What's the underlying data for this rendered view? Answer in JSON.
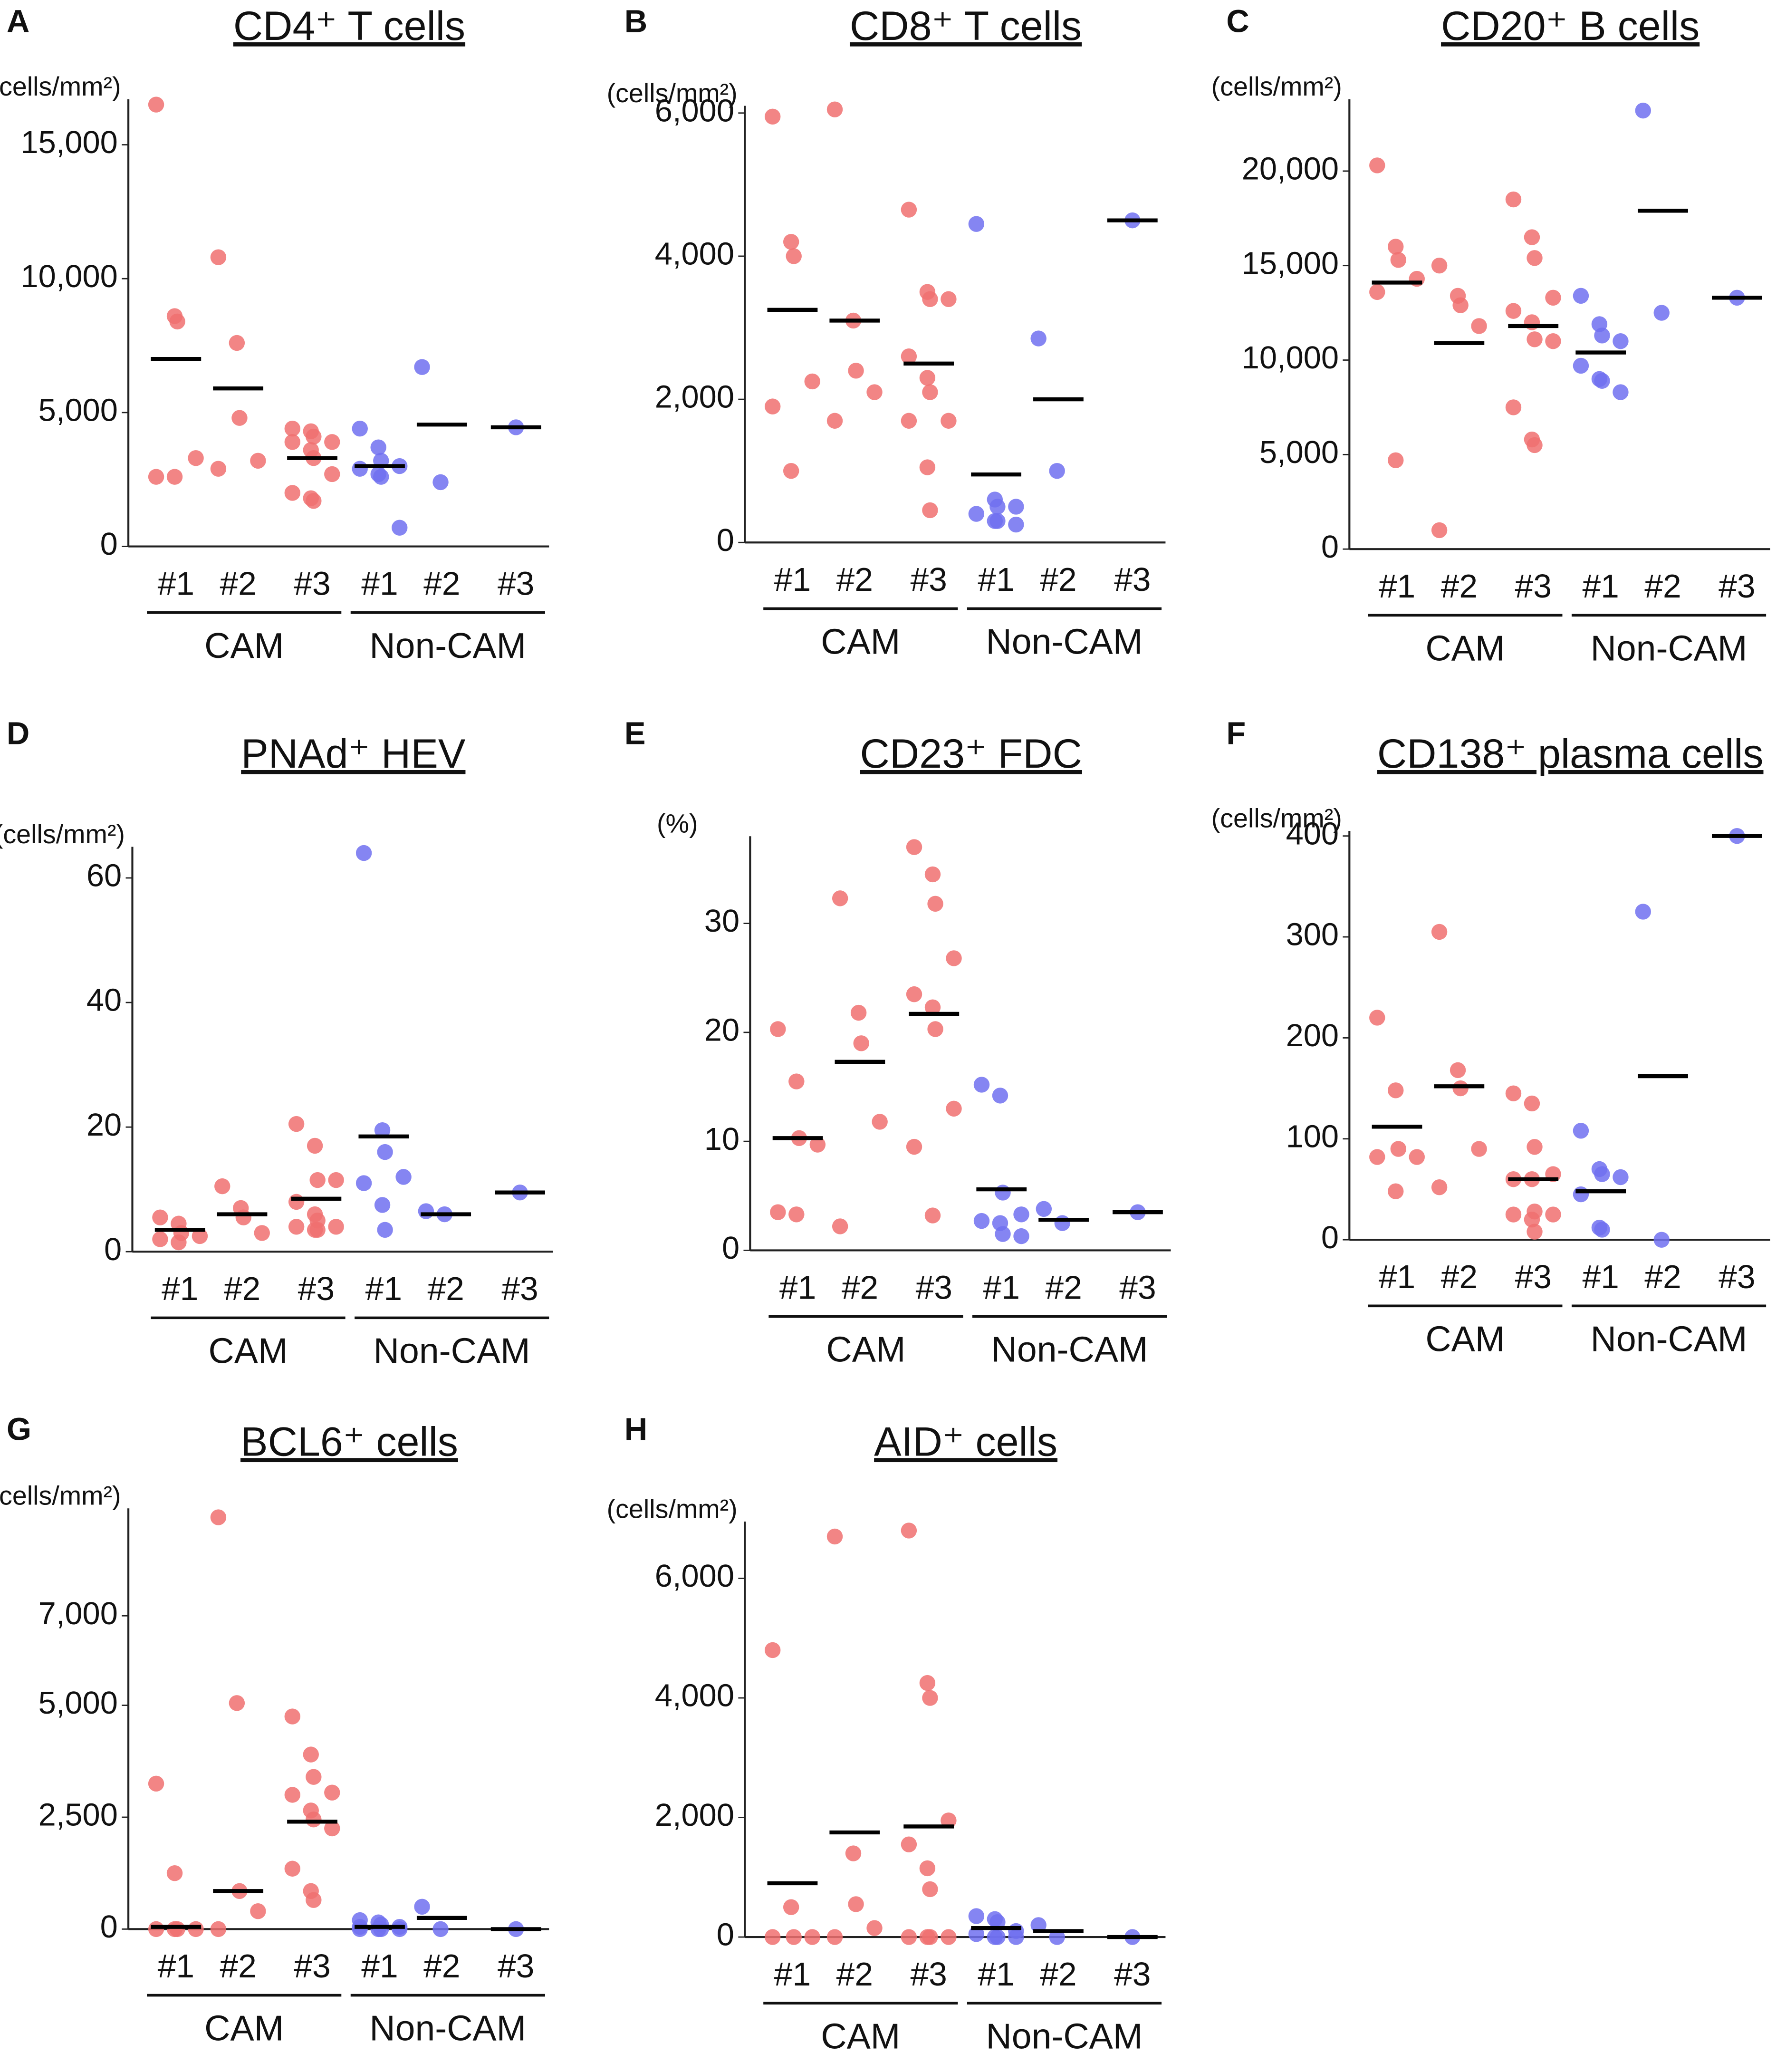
{
  "chart_data": [
    {
      "type": "strip",
      "label": "A",
      "title": "CD4⁺ T cells",
      "y_label": "(cells/mm²)",
      "ylim": [
        0,
        16700
      ],
      "yticks": [
        0,
        {
          "value": 5000,
          "label": "5,000"
        },
        {
          "value": 10000,
          "label": "10,000"
        },
        {
          "value": 15000,
          "label": "15,000"
        }
      ],
      "series": [
        {
          "name": "CAM",
          "color": "#f07070",
          "categories": [
            "#1",
            "#2",
            "#3"
          ],
          "points": [
            [
              16500,
              8600,
              8400,
              3300,
              2600,
              2600
            ],
            [
              10800,
              7600,
              4800,
              3200,
              2900
            ],
            [
              4400,
              4300,
              4100,
              3900,
              3900,
              3600,
              3300,
              2700,
              2000,
              1800,
              1700
            ]
          ],
          "means": [
            7000,
            5900,
            3300
          ]
        },
        {
          "name": "Non-CAM",
          "color": "#7070f0",
          "categories": [
            "#1",
            "#2",
            "#3"
          ],
          "points": [
            [
              4400,
              3700,
              3200,
              3000,
              2900,
              2700,
              2600,
              700
            ],
            [
              6700,
              2400
            ],
            [
              4450
            ]
          ],
          "means": [
            3000,
            4550,
            4450
          ]
        }
      ]
    },
    {
      "type": "strip",
      "label": "B",
      "title": "CD8⁺ T cells",
      "y_label": "(cells/mm²)",
      "ylim": [
        0,
        6100
      ],
      "yticks": [
        0,
        {
          "value": 2000,
          "label": "2,000"
        },
        {
          "value": 4000,
          "label": "4,000"
        },
        {
          "value": 6000,
          "label": "6,000"
        }
      ],
      "series": [
        {
          "name": "CAM",
          "color": "#f07070",
          "categories": [
            "#1",
            "#2",
            "#3"
          ],
          "points": [
            [
              5950,
              4200,
              4000,
              2250,
              1900,
              1000
            ],
            [
              6050,
              3100,
              2400,
              2100,
              1700
            ],
            [
              4650,
              3500,
              3400,
              3400,
              2600,
              2300,
              2100,
              1700,
              1700,
              1050,
              450
            ]
          ],
          "means": [
            3250,
            3100,
            2500
          ]
        },
        {
          "name": "Non-CAM",
          "color": "#7070f0",
          "categories": [
            "#1",
            "#2",
            "#3"
          ],
          "points": [
            [
              4450,
              600,
              500,
              500,
              400,
              300,
              300,
              250
            ],
            [
              2850,
              1000
            ],
            [
              4500
            ]
          ],
          "means": [
            950,
            2000,
            4500
          ]
        }
      ]
    },
    {
      "type": "strip",
      "label": "C",
      "title": "CD20⁺ B cells",
      "y_label": "(cells/mm²)",
      "ylim": [
        0,
        23800
      ],
      "yticks": [
        0,
        {
          "value": 5000,
          "label": "5,000"
        },
        {
          "value": 10000,
          "label": "10,000"
        },
        {
          "value": 15000,
          "label": "15,000"
        },
        {
          "value": 20000,
          "label": "20,000"
        }
      ],
      "series": [
        {
          "name": "CAM",
          "color": "#f07070",
          "categories": [
            "#1",
            "#2",
            "#3"
          ],
          "points": [
            [
              20300,
              16000,
              15300,
              14300,
              13600,
              4700
            ],
            [
              15000,
              13400,
              12900,
              11800,
              1000
            ],
            [
              18500,
              16500,
              15400,
              13300,
              12600,
              12000,
              11100,
              11000,
              7500,
              5800,
              5500
            ]
          ],
          "means": [
            14100,
            10900,
            11800
          ]
        },
        {
          "name": "Non-CAM",
          "color": "#7070f0",
          "categories": [
            "#1",
            "#2",
            "#3"
          ],
          "points": [
            [
              13400,
              11900,
              11300,
              11000,
              9700,
              9000,
              8900,
              8300
            ],
            [
              23200,
              12500
            ],
            [
              13300
            ]
          ],
          "means": [
            10400,
            17900,
            13300
          ]
        }
      ]
    },
    {
      "type": "strip",
      "label": "D",
      "title": "PNAd⁺ HEV",
      "y_label": "(cells/mm²)",
      "ylim": [
        0,
        65
      ],
      "yticks": [
        0,
        20,
        40,
        60
      ],
      "series": [
        {
          "name": "CAM",
          "color": "#f07070",
          "categories": [
            "#1",
            "#2",
            "#3"
          ],
          "points": [
            [
              5.5,
              4.5,
              3,
              2.5,
              2,
              1.5
            ],
            [
              10.5,
              7,
              5.5,
              3
            ],
            [
              20.5,
              17,
              11.5,
              11.5,
              8,
              6,
              5,
              4,
              4,
              3.5,
              3.5
            ]
          ],
          "means": [
            3.5,
            6,
            8.5
          ]
        },
        {
          "name": "Non-CAM",
          "color": "#7070f0",
          "categories": [
            "#1",
            "#2",
            "#3"
          ],
          "points": [
            [
              64,
              19.5,
              16,
              12,
              11,
              7.5,
              3.5
            ],
            [
              6.5,
              6
            ],
            [
              9.5
            ]
          ],
          "means": [
            18.5,
            6,
            9.5
          ]
        }
      ]
    },
    {
      "type": "strip",
      "label": "E",
      "title": "CD23⁺ FDC",
      "y_label": "(%)",
      "ylim": [
        0,
        38
      ],
      "yticks": [
        0,
        10,
        20,
        30
      ],
      "series": [
        {
          "name": "CAM",
          "color": "#f07070",
          "categories": [
            "#1",
            "#2",
            "#3"
          ],
          "points": [
            [
              20.3,
              15.5,
              10.3,
              9.7,
              3.5,
              3.3
            ],
            [
              32.3,
              21.8,
              19,
              11.8,
              2.2
            ],
            [
              37,
              34.5,
              31.8,
              26.8,
              23.5,
              22.3,
              20.3,
              13,
              9.5,
              3.2
            ]
          ],
          "means": [
            10.3,
            17.3,
            21.7
          ]
        },
        {
          "name": "Non-CAM",
          "color": "#7070f0",
          "categories": [
            "#1",
            "#2",
            "#3"
          ],
          "points": [
            [
              15.2,
              14.2,
              5.3,
              3.3,
              2.7,
              2.5,
              1.5,
              1.3
            ],
            [
              3.8,
              2.5
            ],
            [
              3.5
            ]
          ],
          "means": [
            5.6,
            2.8,
            3.5
          ]
        }
      ]
    },
    {
      "type": "strip",
      "label": "F",
      "title": "CD138⁺ plasma cells",
      "y_label": "(cells/mm²)",
      "ylim": [
        0,
        405
      ],
      "yticks": [
        0,
        100,
        200,
        300,
        400
      ],
      "series": [
        {
          "name": "CAM",
          "color": "#f07070",
          "categories": [
            "#1",
            "#2",
            "#3"
          ],
          "points": [
            [
              220,
              148,
              90,
              82,
              82,
              48
            ],
            [
              305,
              168,
              150,
              90,
              52
            ],
            [
              145,
              135,
              92,
              65,
              60,
              60,
              28,
              25,
              25,
              20,
              8
            ]
          ],
          "means": [
            112,
            152,
            60
          ]
        },
        {
          "name": "Non-CAM",
          "color": "#7070f0",
          "categories": [
            "#1",
            "#2",
            "#3"
          ],
          "points": [
            [
              108,
              70,
              65,
              62,
              45,
              12,
              10
            ],
            [
              325,
              0
            ],
            [
              400
            ]
          ],
          "means": [
            48,
            162,
            400
          ]
        }
      ]
    },
    {
      "type": "strip",
      "label": "G",
      "title": "BCL6⁺ cells",
      "y_label": "(cells/mm²)",
      "ylim": [
        0,
        9400
      ],
      "yticks": [
        0,
        {
          "value": 2500,
          "label": "2,500"
        },
        {
          "value": 5000,
          "label": "5,000"
        },
        {
          "value": 7000,
          "label": "7,000"
        }
      ],
      "series": [
        {
          "name": "CAM",
          "color": "#f07070",
          "categories": [
            "#1",
            "#2",
            "#3"
          ],
          "points": [
            [
              3250,
              1250,
              0,
              0,
              0,
              0
            ],
            [
              9200,
              5050,
              850,
              400,
              0
            ],
            [
              4750,
              3900,
              3400,
              3050,
              3000,
              2650,
              2450,
              2250,
              1350,
              850,
              650
            ]
          ],
          "means": [
            50,
            850,
            2400
          ]
        },
        {
          "name": "Non-CAM",
          "color": "#7070f0",
          "categories": [
            "#1",
            "#2",
            "#3"
          ],
          "points": [
            [
              200,
              150,
              100,
              50,
              50,
              0,
              0,
              0,
              0
            ],
            [
              500,
              0
            ],
            [
              0
            ]
          ],
          "means": [
            50,
            250,
            0
          ]
        }
      ]
    },
    {
      "type": "strip",
      "label": "H",
      "title": "AID⁺ cells",
      "y_label": "(cells/mm²)",
      "ylim": [
        0,
        6950
      ],
      "yticks": [
        0,
        {
          "value": 2000,
          "label": "2,000"
        },
        {
          "value": 4000,
          "label": "4,000"
        },
        {
          "value": 6000,
          "label": "6,000"
        }
      ],
      "series": [
        {
          "name": "CAM",
          "color": "#f07070",
          "categories": [
            "#1",
            "#2",
            "#3"
          ],
          "points": [
            [
              4800,
              500,
              0,
              0,
              0
            ],
            [
              6700,
              1400,
              550,
              150,
              0
            ],
            [
              6800,
              4250,
              4000,
              1950,
              1550,
              1150,
              800,
              0,
              0,
              0,
              0
            ]
          ],
          "means": [
            900,
            1750,
            1850
          ]
        },
        {
          "name": "Non-CAM",
          "color": "#7070f0",
          "categories": [
            "#1",
            "#2",
            "#3"
          ],
          "points": [
            [
              350,
              300,
              250,
              100,
              50,
              0,
              0,
              0
            ],
            [
              200,
              0
            ],
            [
              0
            ]
          ],
          "means": [
            150,
            100,
            0
          ]
        }
      ]
    }
  ]
}
